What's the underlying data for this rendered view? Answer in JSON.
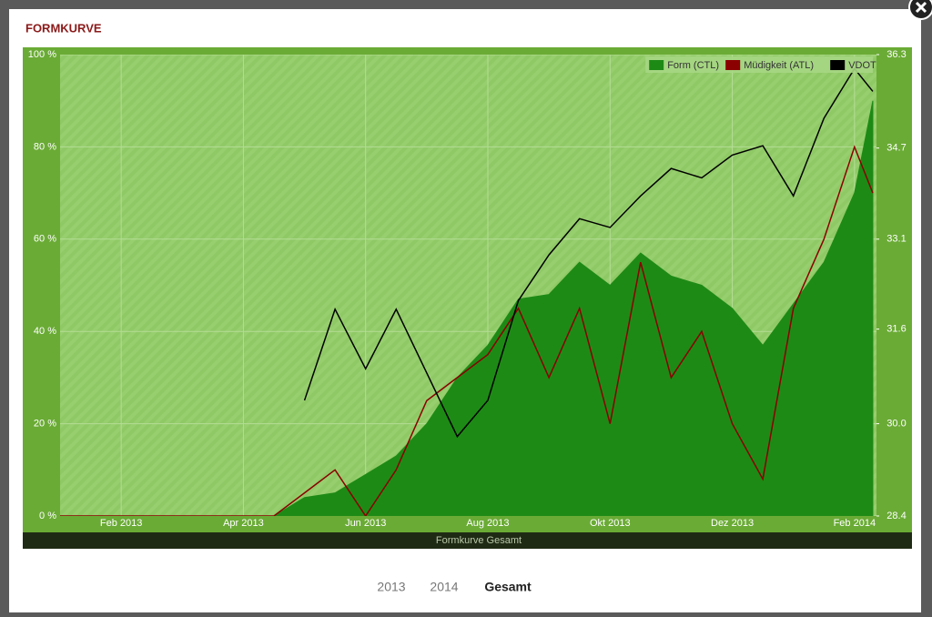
{
  "modal": {
    "title": "FORMKURVE",
    "footer": "Formkurve Gesamt",
    "tabs": [
      "2013",
      "2014",
      "Gesamt"
    ],
    "active_tab": 2
  },
  "chart_data": {
    "type": "line",
    "x": [
      0,
      0.5,
      1,
      1.5,
      2,
      2.5,
      3,
      3.5,
      4,
      4.5,
      5,
      5.5,
      6,
      6.5,
      7,
      7.5,
      8,
      8.5,
      9,
      9.5,
      10,
      10.5,
      11,
      11.5,
      12,
      12.5,
      13,
      13.3
    ],
    "xlim": [
      0,
      13.36
    ],
    "xticks": [
      {
        "value": 1,
        "label": "Feb 2013"
      },
      {
        "value": 3,
        "label": "Apr 2013"
      },
      {
        "value": 5,
        "label": "Jun 2013"
      },
      {
        "value": 7,
        "label": "Aug 2013"
      },
      {
        "value": 9,
        "label": "Okt 2013"
      },
      {
        "value": 11,
        "label": "Dez 2013"
      },
      {
        "value": 13,
        "label": "Feb 2014"
      }
    ],
    "ylim": [
      0,
      100
    ],
    "yticks": [
      {
        "value": 0,
        "label": "0 %"
      },
      {
        "value": 20,
        "label": "20 %"
      },
      {
        "value": 40,
        "label": "40 %"
      },
      {
        "value": 60,
        "label": "60 %"
      },
      {
        "value": 80,
        "label": "80 %"
      },
      {
        "value": 100,
        "label": "100 %"
      }
    ],
    "y2lim": [
      28.4,
      36.3
    ],
    "y2ticks": [
      28.4,
      {
        "value": 29.98,
        "label": "30.0"
      },
      31.6,
      {
        "value": 33.14,
        "label": "33.1"
      },
      34.7,
      36.3
    ],
    "grid": true,
    "legend": "top-right",
    "series": [
      {
        "name": "Form (CTL)",
        "color": "#1e8a16",
        "style": "area",
        "values": [
          0,
          0,
          0,
          0,
          0,
          0,
          0,
          0,
          4,
          5,
          9,
          13,
          20,
          30,
          37,
          47,
          48,
          55,
          50,
          57,
          52,
          50,
          45,
          37,
          46,
          55,
          70,
          90
        ]
      },
      {
        "name": "Müdigkeit (ATL)",
        "color": "#8b0000",
        "style": "line",
        "values": [
          0,
          0,
          0,
          0,
          0,
          0,
          0,
          0,
          5,
          10,
          0,
          10,
          25,
          30,
          35,
          45,
          30,
          45,
          20,
          55,
          30,
          40,
          20,
          8,
          45,
          60,
          80,
          70
        ]
      },
      {
        "name": "VDOT",
        "color": "#000000",
        "style": "line",
        "axis": "y2",
        "values": [
          null,
          null,
          null,
          null,
          null,
          null,
          null,
          null,
          30.38,
          31.94,
          30.92,
          31.94,
          30.85,
          29.76,
          30.38,
          32.09,
          32.87,
          33.49,
          33.34,
          33.88,
          34.35,
          34.19,
          34.58,
          34.74,
          33.88,
          35.21,
          36.06,
          35.67
        ]
      }
    ]
  }
}
